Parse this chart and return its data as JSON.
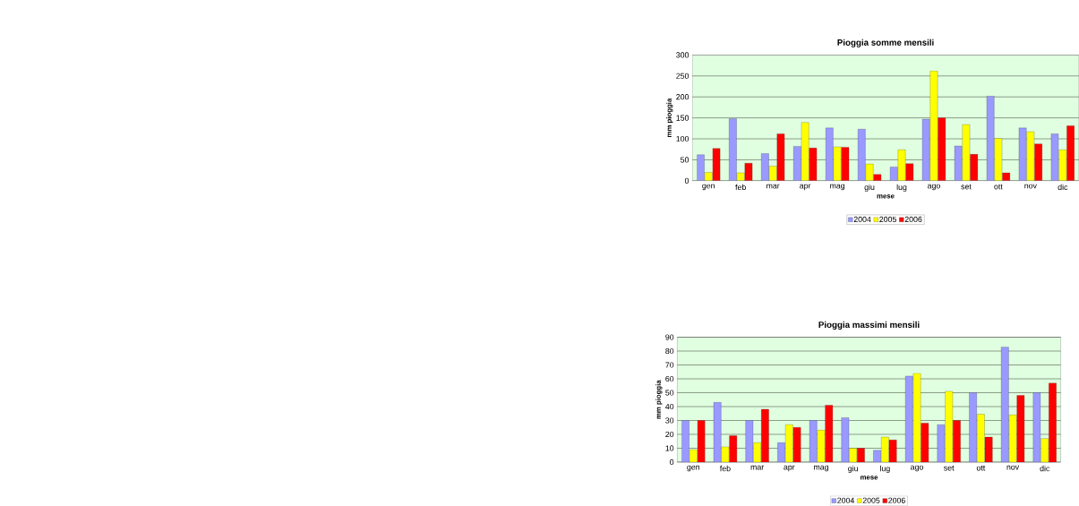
{
  "chart_data": [
    {
      "type": "bar",
      "title": "Pioggia somme mensili",
      "xlabel": "mese",
      "ylabel": "mm pioggia",
      "categories": [
        "gen",
        "feb",
        "mar",
        "apr",
        "mag",
        "giu",
        "lug",
        "ago",
        "set",
        "ott",
        "nov",
        "dic"
      ],
      "series": [
        {
          "name": "2004",
          "color": "#9999ff",
          "values": [
            62,
            148,
            65,
            82,
            126,
            123,
            33,
            147,
            83,
            202,
            126,
            112
          ]
        },
        {
          "name": "2005",
          "color": "#ffff00",
          "values": [
            20,
            19,
            35,
            139,
            81,
            40,
            74,
            262,
            134,
            101,
            117,
            74
          ]
        },
        {
          "name": "2006",
          "color": "#ff0000",
          "values": [
            77,
            42,
            112,
            78,
            80,
            15,
            41,
            150,
            63,
            19,
            88,
            131
          ]
        }
      ],
      "ylim": [
        0,
        300
      ],
      "yticks": [
        0,
        50,
        100,
        150,
        200,
        250,
        300
      ],
      "grid": "y",
      "legend": "bottom"
    },
    {
      "type": "bar",
      "title": "Pioggia massimi mensili",
      "xlabel": "mese",
      "ylabel": "mm pioggia",
      "categories": [
        "gen",
        "feb",
        "mar",
        "apr",
        "mag",
        "giu",
        "lug",
        "ago",
        "set",
        "ott",
        "nov",
        "dic"
      ],
      "series": [
        {
          "name": "2004",
          "color": "#9999ff",
          "values": [
            30,
            43,
            30,
            14,
            30,
            32,
            8.5,
            62,
            27,
            50,
            83,
            50
          ]
        },
        {
          "name": "2005",
          "color": "#ffff00",
          "values": [
            9,
            11,
            14,
            27,
            23,
            10,
            18,
            64,
            51,
            34.5,
            34,
            17
          ]
        },
        {
          "name": "2006",
          "color": "#ff0000",
          "values": [
            30,
            19,
            38,
            25,
            41,
            10,
            16,
            28,
            30,
            18,
            48,
            57
          ]
        }
      ],
      "ylim": [
        0,
        90
      ],
      "yticks": [
        0,
        10,
        20,
        30,
        40,
        50,
        60,
        70,
        80,
        90
      ],
      "grid": "y",
      "legend": "bottom"
    }
  ]
}
